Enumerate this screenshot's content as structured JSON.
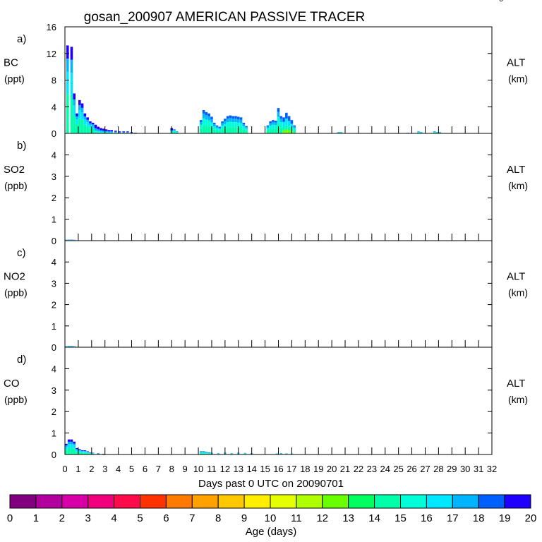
{
  "title": "gosan_200907 AMERICAN PASSIVE TRACER",
  "corner_mark": "0",
  "chart_data": {
    "type": "area",
    "xlabel": "Days past 0 UTC on 20090701",
    "xlim": [
      0,
      32
    ],
    "x_ticks": [
      "0",
      "1",
      "2",
      "3",
      "4",
      "5",
      "6",
      "7",
      "8",
      "9",
      "10",
      "11",
      "12",
      "13",
      "14",
      "15",
      "16",
      "17",
      "18",
      "19",
      "20",
      "21",
      "22",
      "23",
      "24",
      "25",
      "26",
      "27",
      "28",
      "29",
      "30",
      "31",
      "32"
    ],
    "panels": [
      {
        "letter": "a)",
        "species": "BC",
        "unit": "(ppt)",
        "right_label": "ALT",
        "right_unit": "(km)",
        "ylim": [
          0,
          16
        ],
        "y_ticks": [
          "0",
          "4",
          "8",
          "12",
          "16"
        ],
        "y_tick_values": [
          0,
          4,
          8,
          12,
          16
        ],
        "series": [
          {
            "x": [
              0.2,
              0.5,
              0.7,
              0.9,
              1.1,
              1.3,
              1.5,
              1.7,
              1.9,
              2.1,
              2.3,
              2.5,
              2.7,
              2.9,
              3.1,
              3.3,
              3.5,
              3.8,
              4.1,
              4.4,
              4.7,
              5.0,
              5.3
            ],
            "values": [
              13.2,
              13.0,
              6.0,
              3.0,
              5.0,
              4.5,
              3.0,
              2.4,
              1.8,
              1.6,
              1.3,
              1.0,
              0.8,
              0.7,
              0.6,
              0.5,
              0.5,
              0.4,
              0.3,
              0.3,
              0.3,
              0.2,
              0.1
            ]
          },
          {
            "x": [
              8.0,
              8.2,
              8.4,
              10.2,
              10.4,
              10.6,
              10.8,
              11.0,
              11.2,
              11.4,
              11.6,
              11.8,
              12.0,
              12.2,
              12.4,
              12.6,
              12.8,
              13.0,
              13.2,
              13.4,
              13.6
            ],
            "values": [
              0.8,
              0.6,
              0.3,
              2.0,
              3.5,
              3.2,
              3.0,
              2.5,
              1.6,
              1.2,
              1.0,
              1.8,
              2.2,
              2.6,
              2.7,
              2.6,
              2.6,
              2.5,
              2.4,
              1.6,
              1.1
            ]
          },
          {
            "x": [
              15.2,
              15.4,
              15.6,
              15.8,
              16.0,
              16.2,
              16.4,
              16.6,
              16.8,
              17.0,
              17.2
            ],
            "values": [
              1.2,
              1.8,
              2.0,
              1.9,
              3.8,
              2.6,
              2.4,
              3.1,
              2.6,
              2.0,
              1.2
            ]
          },
          {
            "x": [
              20.5,
              20.7,
              25.7,
              26.5,
              26.7,
              27.7,
              27.9,
              28.1
            ],
            "values": [
              0.2,
              0.2,
              0.1,
              0.3,
              0.2,
              0.3,
              0.2,
              0.2
            ]
          }
        ]
      },
      {
        "letter": "b)",
        "species": "SO2",
        "unit": "(ppb)",
        "right_label": "ALT",
        "right_unit": "(km)",
        "ylim": [
          0,
          5
        ],
        "y_ticks": [
          "0",
          "1",
          "2",
          "3",
          "4"
        ],
        "y_tick_values": [
          0,
          1,
          2,
          3,
          4
        ],
        "series": [
          {
            "x": [
              0.1,
              0.3,
              0.5,
              0.7
            ],
            "values": [
              0.04,
              0.05,
              0.05,
              0.04
            ]
          }
        ]
      },
      {
        "letter": "c)",
        "species": "NO2",
        "unit": "(ppb)",
        "right_label": "ALT",
        "right_unit": "(km)",
        "ylim": [
          0,
          5
        ],
        "y_ticks": [
          "0",
          "1",
          "2",
          "3",
          "4"
        ],
        "y_tick_values": [
          0,
          1,
          2,
          3,
          4
        ],
        "series": [
          {
            "x": [
              0.1,
              0.3,
              0.5,
              0.7
            ],
            "values": [
              0.05,
              0.06,
              0.06,
              0.05
            ]
          }
        ]
      },
      {
        "letter": "d)",
        "species": "CO",
        "unit": "(ppb)",
        "right_label": "ALT",
        "right_unit": "(km)",
        "ylim": [
          0,
          5
        ],
        "y_ticks": [
          "0",
          "1",
          "2",
          "3",
          "4"
        ],
        "y_tick_values": [
          0,
          1,
          2,
          3,
          4
        ],
        "series": [
          {
            "x": [
              0.1,
              0.3,
              0.5,
              0.7,
              0.9,
              1.1,
              1.3,
              1.5,
              1.7,
              1.9,
              2.1,
              2.5,
              2.9
            ],
            "values": [
              0.5,
              0.7,
              0.7,
              0.6,
              0.3,
              0.25,
              0.2,
              0.2,
              0.15,
              0.1,
              0.08,
              0.05,
              0.03
            ]
          },
          {
            "x": [
              10.2,
              10.4,
              10.6,
              10.8,
              11.0,
              11.5,
              12.0,
              12.5,
              13.0,
              13.5,
              14.0,
              15.9,
              16.2,
              16.6,
              17.0
            ],
            "values": [
              0.15,
              0.15,
              0.12,
              0.1,
              0.08,
              0.06,
              0.08,
              0.06,
              0.08,
              0.07,
              0.06,
              0.05,
              0.06,
              0.05,
              0.04
            ]
          }
        ]
      }
    ],
    "legend": {
      "title": "Age (days)",
      "labels": [
        "0",
        "1",
        "2",
        "3",
        "4",
        "5",
        "6",
        "7",
        "8",
        "9",
        "10",
        "11",
        "12",
        "13",
        "14",
        "15",
        "16",
        "17",
        "18",
        "19",
        "20"
      ],
      "colors": [
        "#800080",
        "#b2009e",
        "#d600a6",
        "#f0007c",
        "#ff0a4a",
        "#ff3300",
        "#ff7a00",
        "#ffa200",
        "#ffc800",
        "#ffee00",
        "#e6ff00",
        "#b0ff00",
        "#6aff00",
        "#00ff60",
        "#00ffa8",
        "#00ffd8",
        "#00e8ff",
        "#00b4ff",
        "#0060ff",
        "#1f00ff",
        "#7a00ff"
      ]
    }
  }
}
